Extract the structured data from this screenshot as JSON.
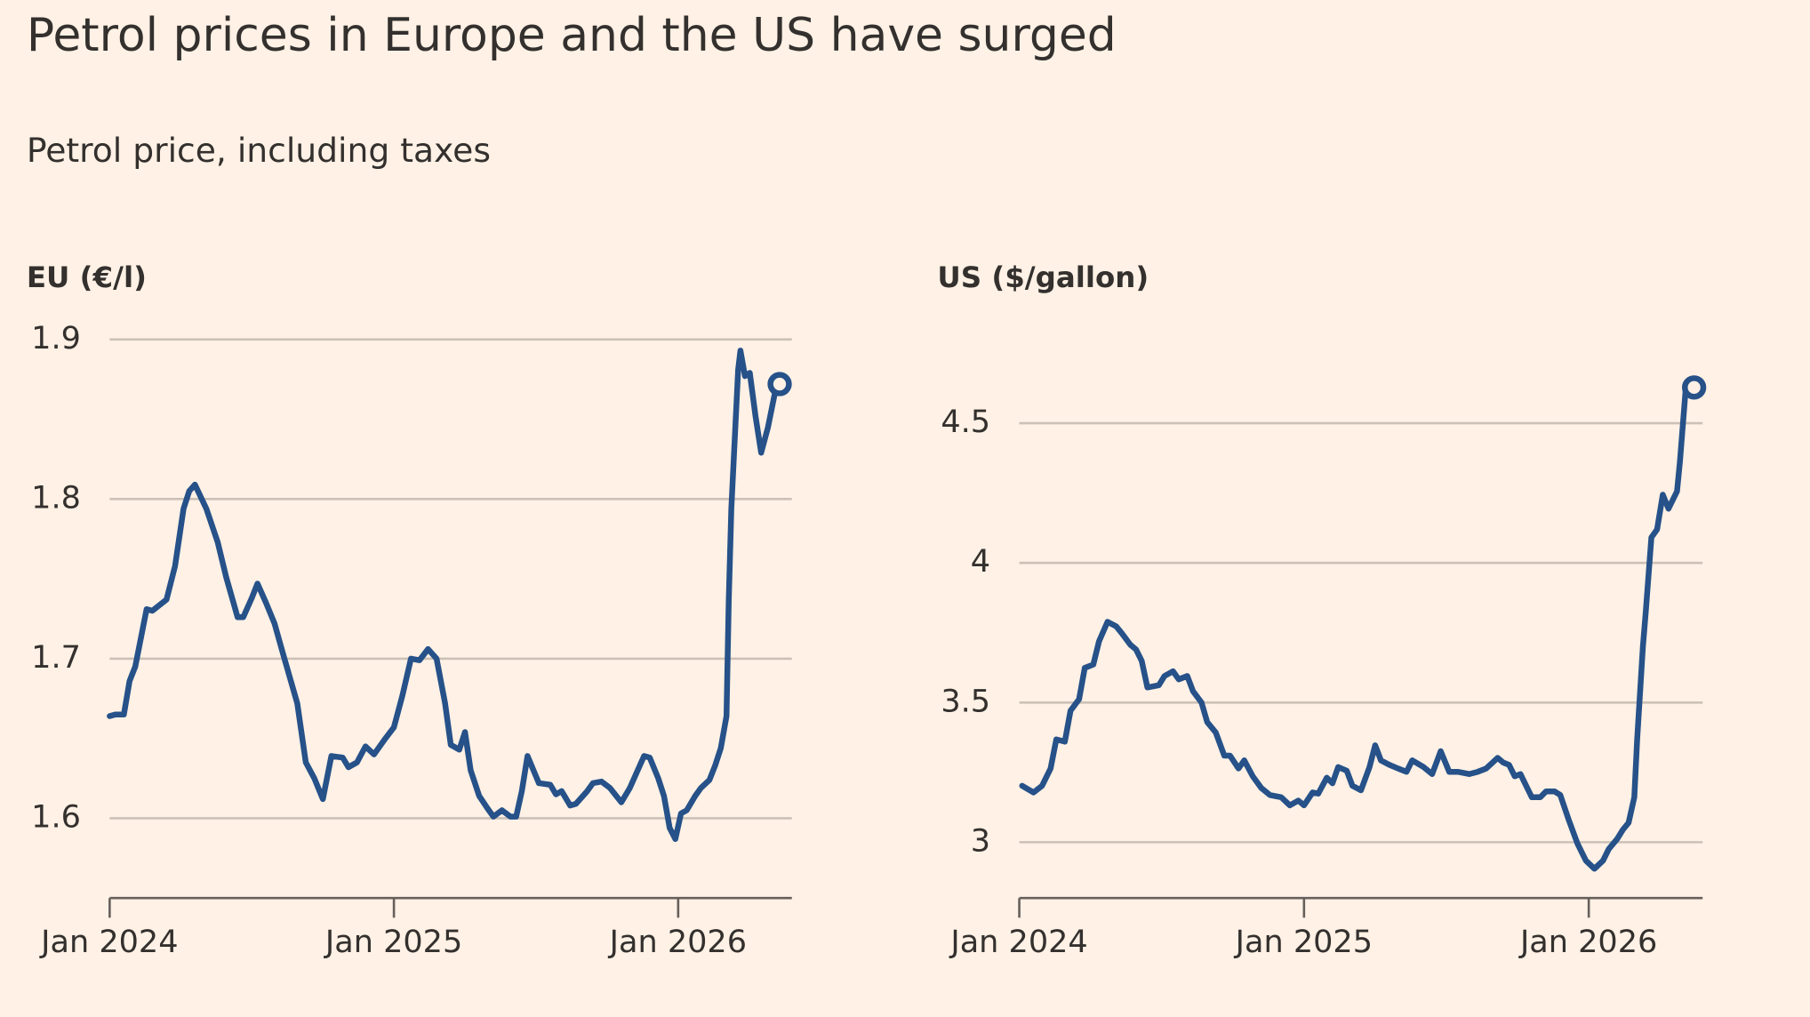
{
  "title": "Petrol prices in Europe and the US have surged",
  "subtitle": "Petrol price, including taxes",
  "chart_data": [
    {
      "type": "line",
      "y_label": "EU (€/l)",
      "x": [
        2024.0,
        2024.02,
        2024.05,
        2024.07,
        2024.09,
        2024.13,
        2024.15,
        2024.2,
        2024.23,
        2024.26,
        2024.28,
        2024.3,
        2024.34,
        2024.38,
        2024.41,
        2024.45,
        2024.47,
        2024.5,
        2024.52,
        2024.55,
        2024.58,
        2024.61,
        2024.66,
        2024.69,
        2024.72,
        2024.75,
        2024.78,
        2024.82,
        2024.84,
        2024.87,
        2024.9,
        2024.93,
        2024.97,
        2025.0,
        2025.03,
        2025.06,
        2025.09,
        2025.12,
        2025.15,
        2025.18,
        2025.2,
        2025.23,
        2025.25,
        2025.27,
        2025.3,
        2025.33,
        2025.35,
        2025.38,
        2025.41,
        2025.43,
        2025.45,
        2025.47,
        2025.51,
        2025.55,
        2025.57,
        2025.59,
        2025.62,
        2025.64,
        2025.68,
        2025.7,
        2025.73,
        2025.76,
        2025.8,
        2025.83,
        2025.85,
        2025.88,
        2025.9,
        2025.93,
        2025.95,
        2025.97,
        2025.99,
        2026.01,
        2026.03,
        2026.06,
        2026.08,
        2026.11,
        2026.13,
        2026.15,
        2026.17,
        2026.178,
        2026.187,
        2026.195,
        2026.211,
        2026.219,
        2026.235,
        2026.252,
        2026.272,
        2026.292,
        2026.316,
        2026.341,
        2026.357
      ],
      "series": [
        {
          "color": "#265189",
          "values": [
            1.664,
            1.665,
            1.665,
            1.686,
            1.695,
            1.731,
            1.73,
            1.737,
            1.758,
            1.794,
            1.805,
            1.809,
            1.794,
            1.773,
            1.751,
            1.726,
            1.726,
            1.738,
            1.747,
            1.735,
            1.722,
            1.703,
            1.672,
            1.635,
            1.625,
            1.612,
            1.639,
            1.638,
            1.632,
            1.635,
            1.645,
            1.64,
            1.65,
            1.657,
            1.677,
            1.7,
            1.699,
            1.706,
            1.7,
            1.672,
            1.646,
            1.643,
            1.654,
            1.63,
            1.614,
            1.606,
            1.601,
            1.605,
            1.601,
            1.601,
            1.617,
            1.639,
            1.622,
            1.621,
            1.615,
            1.617,
            1.608,
            1.609,
            1.617,
            1.622,
            1.623,
            1.619,
            1.61,
            1.619,
            1.627,
            1.639,
            1.638,
            1.625,
            1.614,
            1.594,
            1.587,
            1.603,
            1.605,
            1.614,
            1.619,
            1.624,
            1.633,
            1.644,
            1.664,
            1.737,
            1.794,
            1.823,
            1.881,
            1.893,
            1.877,
            1.879,
            1.852,
            1.829,
            1.845,
            1.867,
            1.872
          ]
        }
      ],
      "xlim": [
        2024,
        2026.4
      ],
      "xticks": [
        {
          "value": 2024,
          "label": "Jan 2024"
        },
        {
          "value": 2025,
          "label": "Jan 2025"
        },
        {
          "value": 2026,
          "label": "Jan 2026"
        }
      ],
      "ylim": [
        1.55,
        1.9
      ],
      "yticks": [
        1.6,
        1.7,
        1.8,
        1.9
      ],
      "grid": true
    },
    {
      "type": "line",
      "y_label": "US ($/gallon)",
      "x": [
        2024.01,
        2024.05,
        2024.08,
        2024.11,
        2024.13,
        2024.16,
        2024.18,
        2024.21,
        2024.23,
        2024.26,
        2024.28,
        2024.31,
        2024.34,
        2024.36,
        2024.39,
        2024.41,
        2024.43,
        2024.45,
        2024.49,
        2024.51,
        2024.54,
        2024.56,
        2024.59,
        2024.61,
        2024.64,
        2024.66,
        2024.69,
        2024.72,
        2024.74,
        2024.77,
        2024.79,
        2024.82,
        2024.85,
        2024.88,
        2024.92,
        2024.95,
        2024.98,
        2025.0,
        2025.03,
        2025.05,
        2025.08,
        2025.1,
        2025.12,
        2025.15,
        2025.17,
        2025.2,
        2025.23,
        2025.25,
        2025.27,
        2025.3,
        2025.33,
        2025.36,
        2025.38,
        2025.42,
        2025.45,
        2025.48,
        2025.51,
        2025.54,
        2025.58,
        2025.61,
        2025.64,
        2025.68,
        2025.7,
        2025.72,
        2025.74,
        2025.76,
        2025.8,
        2025.83,
        2025.85,
        2025.88,
        2025.9,
        2025.93,
        2025.96,
        2025.99,
        2026.02,
        2026.05,
        2026.07,
        2026.1,
        2026.12,
        2026.14,
        2026.16,
        2026.17,
        2026.19,
        2026.2,
        2026.22,
        2026.24,
        2026.26,
        2026.28,
        2026.31,
        2026.32,
        2026.34,
        2026.37
      ],
      "series": [
        {
          "color": "#265189",
          "values": [
            3.202,
            3.178,
            3.202,
            3.264,
            3.368,
            3.36,
            3.471,
            3.512,
            3.624,
            3.636,
            3.719,
            3.789,
            3.773,
            3.748,
            3.707,
            3.69,
            3.649,
            3.554,
            3.562,
            3.595,
            3.612,
            3.583,
            3.595,
            3.541,
            3.5,
            3.43,
            3.393,
            3.31,
            3.31,
            3.264,
            3.293,
            3.236,
            3.194,
            3.169,
            3.161,
            3.132,
            3.149,
            3.132,
            3.178,
            3.174,
            3.231,
            3.211,
            3.269,
            3.256,
            3.202,
            3.186,
            3.269,
            3.347,
            3.293,
            3.277,
            3.264,
            3.252,
            3.293,
            3.269,
            3.244,
            3.326,
            3.252,
            3.252,
            3.244,
            3.252,
            3.264,
            3.302,
            3.285,
            3.277,
            3.236,
            3.244,
            3.161,
            3.161,
            3.182,
            3.182,
            3.169,
            3.079,
            2.996,
            2.934,
            2.905,
            2.934,
            2.975,
            3.012,
            3.045,
            3.07,
            3.161,
            3.368,
            3.698,
            3.822,
            4.091,
            4.12,
            4.244,
            4.194,
            4.256,
            4.36,
            4.616,
            4.628
          ]
        }
      ],
      "xlim": [
        2024,
        2026.4
      ],
      "xticks": [
        {
          "value": 2024,
          "label": "Jan 2024"
        },
        {
          "value": 2025,
          "label": "Jan 2025"
        },
        {
          "value": 2026,
          "label": "Jan 2026"
        }
      ],
      "ylim": [
        2.8,
        4.8
      ],
      "yticks": [
        3,
        3.5,
        4,
        4.5
      ],
      "grid": true
    }
  ]
}
